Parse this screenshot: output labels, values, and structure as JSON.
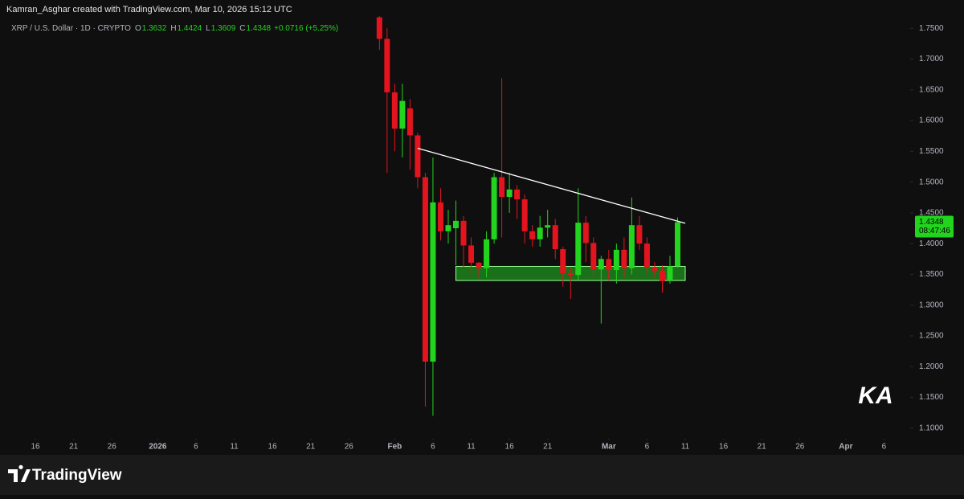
{
  "chart_data": {
    "type": "candlestick",
    "header": "Kamran_Asghar created with TradingView.com, Mar 10, 2026 15:12 UTC",
    "symbol": "XRP / U.S. Dollar · 1D · CRYPTO",
    "ohlc_letters": [
      "O",
      "H",
      "L",
      "C"
    ],
    "change": "+0.0716 (+5.25%)",
    "countdown": "08:47:46",
    "watermark": "KA",
    "brand": "TradingView",
    "up_color": "#22d41e",
    "down_color": "#e3141e",
    "x": [
      "2026-01-30",
      "2026-01-31",
      "2026-02-01",
      "2026-02-02",
      "2026-02-03",
      "2026-02-04",
      "2026-02-05",
      "2026-02-06",
      "2026-02-07",
      "2026-02-08",
      "2026-02-09",
      "2026-02-10",
      "2026-02-11",
      "2026-02-12",
      "2026-02-13",
      "2026-02-14",
      "2026-02-15",
      "2026-02-16",
      "2026-02-17",
      "2026-02-18",
      "2026-02-19",
      "2026-02-20",
      "2026-02-21",
      "2026-02-22",
      "2026-02-23",
      "2026-02-24",
      "2026-02-25",
      "2026-02-26",
      "2026-02-27",
      "2026-02-28",
      "2026-03-01",
      "2026-03-02",
      "2026-03-03",
      "2026-03-04",
      "2026-03-05",
      "2026-03-06",
      "2026-03-07",
      "2026-03-08",
      "2026-03-09",
      "2026-03-10"
    ],
    "open": [
      1.768,
      1.733,
      1.646,
      1.587,
      1.62,
      1.576,
      1.508,
      1.208,
      1.467,
      1.42,
      1.425,
      1.437,
      1.397,
      1.369,
      1.36,
      1.407,
      1.508,
      1.476,
      1.488,
      1.472,
      1.42,
      1.407,
      1.426,
      1.43,
      1.391,
      1.352,
      1.349,
      1.434,
      1.401,
      1.358,
      1.375,
      1.357,
      1.39,
      1.36,
      1.43,
      1.4,
      1.362,
      1.356,
      1.34,
      1.3632
    ],
    "high": [
      1.77,
      1.75,
      1.66,
      1.66,
      1.635,
      1.58,
      1.515,
      1.54,
      1.49,
      1.455,
      1.47,
      1.445,
      1.41,
      1.37,
      1.42,
      1.515,
      1.669,
      1.515,
      1.495,
      1.48,
      1.43,
      1.445,
      1.455,
      1.44,
      1.395,
      1.36,
      1.49,
      1.445,
      1.41,
      1.38,
      1.39,
      1.4,
      1.41,
      1.475,
      1.445,
      1.41,
      1.37,
      1.365,
      1.38,
      1.4424
    ],
    "low": [
      1.715,
      1.515,
      1.55,
      1.54,
      1.52,
      1.49,
      1.135,
      1.12,
      1.405,
      1.4,
      1.365,
      1.36,
      1.35,
      1.345,
      1.345,
      1.4,
      1.41,
      1.45,
      1.44,
      1.4,
      1.395,
      1.395,
      1.41,
      1.375,
      1.33,
      1.31,
      1.34,
      1.37,
      1.345,
      1.27,
      1.34,
      1.335,
      1.345,
      1.35,
      1.39,
      1.35,
      1.345,
      1.32,
      1.335,
      1.3609
    ],
    "close": [
      1.733,
      1.646,
      1.587,
      1.632,
      1.576,
      1.508,
      1.208,
      1.467,
      1.42,
      1.43,
      1.437,
      1.397,
      1.369,
      1.36,
      1.407,
      1.508,
      1.476,
      1.488,
      1.472,
      1.42,
      1.407,
      1.426,
      1.43,
      1.391,
      1.352,
      1.349,
      1.434,
      1.401,
      1.358,
      1.375,
      1.357,
      1.39,
      1.36,
      1.43,
      1.4,
      1.362,
      1.356,
      1.339,
      1.3632,
      1.4348
    ],
    "trendline": {
      "x": [
        "2026-02-04",
        "2026-03-11"
      ],
      "y": [
        1.555,
        1.433
      ]
    },
    "support_zone": {
      "x": [
        "2026-02-09",
        "2026-03-11"
      ],
      "y": [
        1.34,
        1.363
      ]
    },
    "xlim": [
      "2025-12-12",
      "2026-04-09"
    ],
    "xticks": [
      {
        "value": "2025-12-16",
        "label": "16"
      },
      {
        "value": "2025-12-21",
        "label": "21"
      },
      {
        "value": "2025-12-26",
        "label": "26"
      },
      {
        "value": "2026-01-01",
        "label": "2026"
      },
      {
        "value": "2026-01-06",
        "label": "6"
      },
      {
        "value": "2026-01-11",
        "label": "11"
      },
      {
        "value": "2026-01-16",
        "label": "16"
      },
      {
        "value": "2026-01-21",
        "label": "21"
      },
      {
        "value": "2026-01-26",
        "label": "26"
      },
      {
        "value": "2026-02-01",
        "label": "Feb"
      },
      {
        "value": "2026-02-06",
        "label": "6"
      },
      {
        "value": "2026-02-11",
        "label": "11"
      },
      {
        "value": "2026-02-16",
        "label": "16"
      },
      {
        "value": "2026-02-21",
        "label": "21"
      },
      {
        "value": "2026-03-01",
        "label": "Mar"
      },
      {
        "value": "2026-03-06",
        "label": "6"
      },
      {
        "value": "2026-03-11",
        "label": "11"
      },
      {
        "value": "2026-03-16",
        "label": "16"
      },
      {
        "value": "2026-03-21",
        "label": "21"
      },
      {
        "value": "2026-03-26",
        "label": "26"
      },
      {
        "value": "2026-04-01",
        "label": "Apr"
      },
      {
        "value": "2026-04-06",
        "label": "6"
      }
    ],
    "ylim": [
      1.084,
      1.77
    ],
    "yticks": [
      {
        "value": 1.75,
        "label": "1.7500"
      },
      {
        "value": 1.7,
        "label": "1.7000"
      },
      {
        "value": 1.65,
        "label": "1.6500"
      },
      {
        "value": 1.6,
        "label": "1.6000"
      },
      {
        "value": 1.55,
        "label": "1.5500"
      },
      {
        "value": 1.5,
        "label": "1.5000"
      },
      {
        "value": 1.45,
        "label": "1.4500"
      },
      {
        "value": 1.4,
        "label": "1.4000"
      },
      {
        "value": 1.35,
        "label": "1.3500"
      },
      {
        "value": 1.3,
        "label": "1.3000"
      },
      {
        "value": 1.25,
        "label": "1.2500"
      },
      {
        "value": 1.2,
        "label": "1.2000"
      },
      {
        "value": 1.15,
        "label": "1.1500"
      },
      {
        "value": 1.1,
        "label": "1.1000"
      }
    ]
  }
}
